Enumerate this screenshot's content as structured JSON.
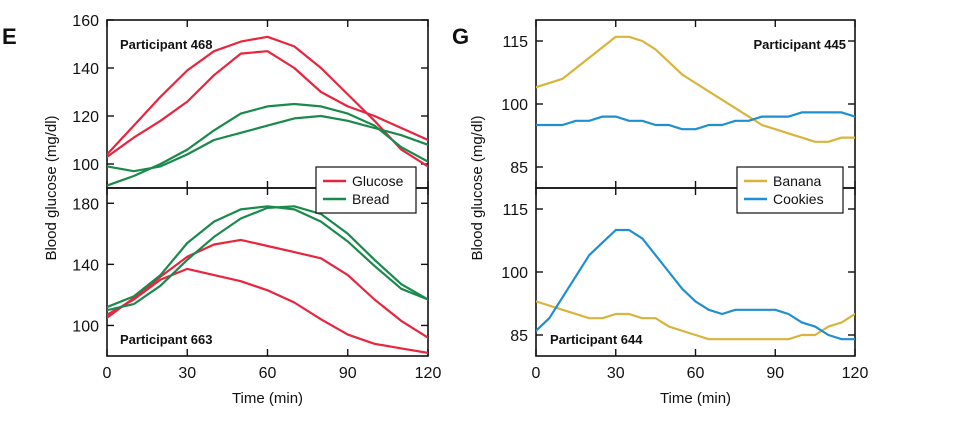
{
  "figure": {
    "left_letter": "E",
    "right_letter": "G"
  },
  "chart_data": [
    {
      "id": "E-top",
      "type": "line",
      "panel": "E",
      "annotation": "Participant 468",
      "xlabel": "Time (min)",
      "ylabel": "Blood glucose (mg/dl)",
      "xlim": [
        0,
        120
      ],
      "ylim": [
        90,
        160
      ],
      "yticks": [
        100,
        120,
        140,
        160
      ],
      "series": [
        {
          "name": "Glucose",
          "color": "#e8253e",
          "x": [
            0,
            10,
            20,
            30,
            40,
            50,
            60,
            70,
            80,
            90,
            100,
            110,
            120
          ],
          "y": [
            104,
            116,
            128,
            139,
            147,
            151,
            153,
            149,
            140,
            129,
            118,
            106,
            99
          ]
        },
        {
          "name": "Glucose",
          "color": "#e8253e",
          "x": [
            0,
            10,
            20,
            30,
            40,
            50,
            60,
            70,
            80,
            90,
            100,
            110,
            120
          ],
          "y": [
            103,
            111,
            118,
            126,
            137,
            146,
            147,
            140,
            130,
            124,
            120,
            115,
            110
          ]
        },
        {
          "name": "Bread",
          "color": "#1a8a4c",
          "x": [
            0,
            10,
            20,
            30,
            40,
            50,
            60,
            70,
            80,
            90,
            100,
            110,
            120
          ],
          "y": [
            91,
            95,
            100,
            106,
            114,
            121,
            124,
            125,
            124,
            121,
            116,
            107,
            101
          ]
        },
        {
          "name": "Bread",
          "color": "#1a8a4c",
          "x": [
            0,
            10,
            20,
            30,
            40,
            50,
            60,
            70,
            80,
            90,
            100,
            110,
            120
          ],
          "y": [
            99,
            97,
            99,
            104,
            110,
            113,
            116,
            119,
            120,
            118,
            115,
            112,
            108
          ]
        }
      ]
    },
    {
      "id": "E-bottom",
      "type": "line",
      "panel": "E",
      "annotation": "Participant 663",
      "xlabel": "Time (min)",
      "ylabel": "Blood glucose (mg/dl)",
      "xlim": [
        0,
        120
      ],
      "ylim": [
        80,
        190
      ],
      "yticks": [
        100,
        140,
        180
      ],
      "xticks": [
        0,
        30,
        60,
        90,
        120
      ],
      "legend": {
        "position": "top-right",
        "entries": [
          {
            "label": "Glucose",
            "color": "#e8253e"
          },
          {
            "label": "Bread",
            "color": "#1a8a4c"
          }
        ]
      },
      "series": [
        {
          "name": "Glucose",
          "color": "#e8253e",
          "x": [
            0,
            10,
            20,
            30,
            40,
            50,
            60,
            70,
            80,
            90,
            100,
            110,
            120
          ],
          "y": [
            105,
            118,
            132,
            145,
            153,
            156,
            152,
            148,
            144,
            133,
            117,
            103,
            92
          ]
        },
        {
          "name": "Glucose",
          "color": "#e8253e",
          "x": [
            0,
            10,
            20,
            30,
            40,
            50,
            60,
            70,
            80,
            90,
            100,
            110,
            120
          ],
          "y": [
            107,
            117,
            130,
            137,
            133,
            129,
            123,
            115,
            104,
            94,
            88,
            85,
            82
          ]
        },
        {
          "name": "Bread",
          "color": "#1a8a4c",
          "x": [
            0,
            10,
            20,
            30,
            40,
            50,
            60,
            70,
            80,
            90,
            100,
            110,
            120
          ],
          "y": [
            112,
            119,
            133,
            154,
            168,
            176,
            178,
            176,
            168,
            155,
            139,
            124,
            117
          ]
        },
        {
          "name": "Bread",
          "color": "#1a8a4c",
          "x": [
            0,
            10,
            20,
            30,
            40,
            50,
            60,
            70,
            80,
            90,
            100,
            110,
            120
          ],
          "y": [
            110,
            114,
            126,
            143,
            158,
            170,
            177,
            178,
            173,
            160,
            143,
            127,
            117
          ]
        }
      ]
    },
    {
      "id": "G-top",
      "type": "line",
      "panel": "G",
      "annotation": "Participant 445",
      "xlabel": "Time (min)",
      "ylabel": "Blood glucose (mg/dl)",
      "xlim": [
        0,
        120
      ],
      "ylim": [
        80,
        120
      ],
      "yticks": [
        85,
        100,
        115
      ],
      "series": [
        {
          "name": "Banana",
          "color": "#d9b43c",
          "x": [
            0,
            10,
            20,
            30,
            35,
            40,
            45,
            50,
            55,
            60,
            65,
            70,
            75,
            80,
            85,
            90,
            95,
            100,
            105,
            110,
            115,
            120
          ],
          "y": [
            104,
            106,
            111,
            116,
            116,
            115,
            113,
            110,
            107,
            105,
            103,
            101,
            99,
            97,
            95,
            94,
            93,
            92,
            91,
            91,
            92,
            92
          ]
        },
        {
          "name": "Cookies",
          "color": "#1f8fd1",
          "x": [
            0,
            5,
            10,
            15,
            20,
            25,
            30,
            35,
            40,
            45,
            50,
            55,
            60,
            65,
            70,
            75,
            80,
            85,
            90,
            95,
            100,
            105,
            110,
            115,
            120
          ],
          "y": [
            95,
            95,
            95,
            96,
            96,
            97,
            97,
            96,
            96,
            95,
            95,
            94,
            94,
            95,
            95,
            96,
            96,
            97,
            97,
            97,
            98,
            98,
            98,
            98,
            97
          ]
        }
      ]
    },
    {
      "id": "G-bottom",
      "type": "line",
      "panel": "G",
      "annotation": "Participant 644",
      "xlabel": "Time (min)",
      "ylabel": "Blood glucose (mg/dl)",
      "xlim": [
        0,
        120
      ],
      "ylim": [
        80,
        120
      ],
      "yticks": [
        85,
        100,
        115
      ],
      "xticks": [
        0,
        30,
        60,
        90,
        120
      ],
      "legend": {
        "position": "top-right",
        "entries": [
          {
            "label": "Banana",
            "color": "#d9b43c"
          },
          {
            "label": "Cookies",
            "color": "#1f8fd1"
          }
        ]
      },
      "series": [
        {
          "name": "Banana",
          "color": "#d9b43c",
          "x": [
            0,
            10,
            20,
            25,
            30,
            35,
            40,
            45,
            50,
            60,
            65,
            70,
            75,
            80,
            85,
            90,
            95,
            100,
            105,
            110,
            115,
            120
          ],
          "y": [
            93,
            91,
            89,
            89,
            90,
            90,
            89,
            89,
            87,
            85,
            84,
            84,
            84,
            84,
            84,
            84,
            84,
            85,
            85,
            87,
            88,
            90
          ]
        },
        {
          "name": "Cookies",
          "color": "#1f8fd1",
          "x": [
            0,
            5,
            10,
            15,
            20,
            25,
            30,
            35,
            40,
            45,
            50,
            55,
            60,
            65,
            70,
            75,
            80,
            85,
            90,
            95,
            100,
            105,
            110,
            115,
            120
          ],
          "y": [
            86,
            89,
            94,
            99,
            104,
            107,
            110,
            110,
            108,
            104,
            100,
            96,
            93,
            91,
            90,
            91,
            91,
            91,
            91,
            90,
            88,
            87,
            85,
            84,
            84
          ]
        }
      ]
    }
  ]
}
